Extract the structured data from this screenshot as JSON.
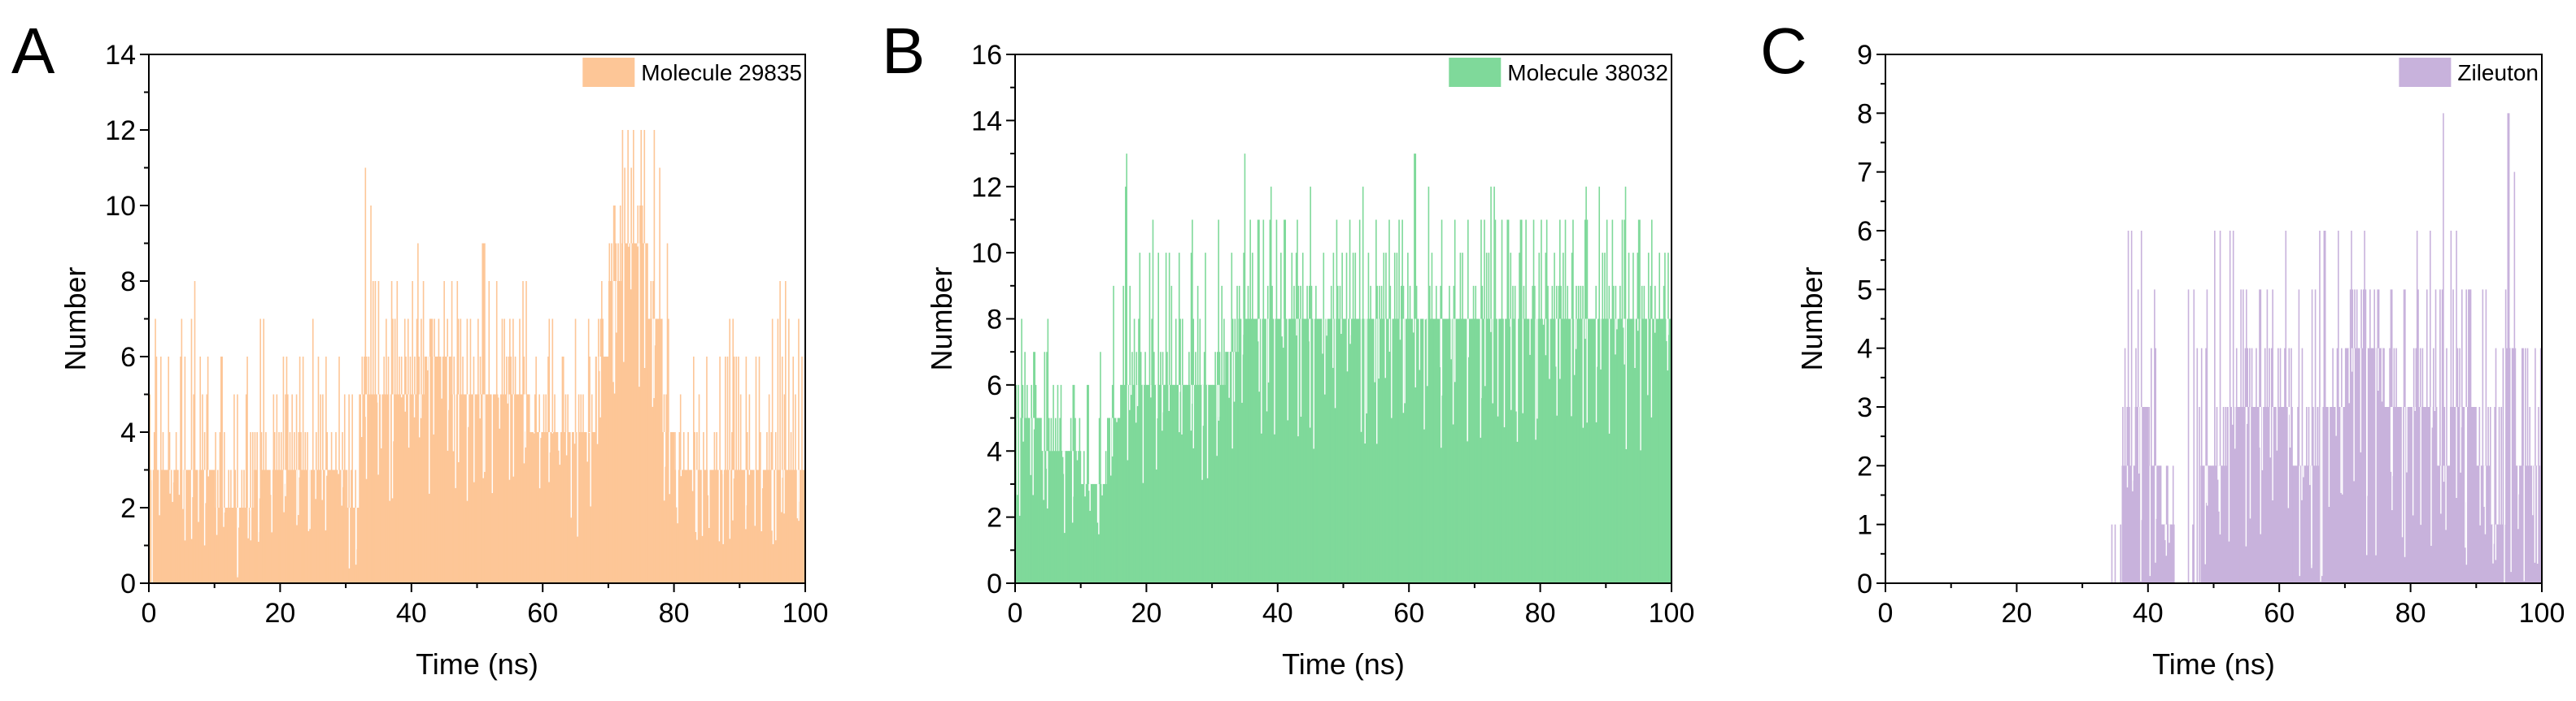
{
  "chart_data": [
    {
      "type": "bar",
      "panel_label": "A",
      "legend": "Molecule 29835",
      "color": "#FDC697",
      "xlabel": "Time (ns)",
      "ylabel": "Number",
      "xlim": [
        0,
        100
      ],
      "ylim": [
        0,
        14
      ],
      "xticks": [
        0,
        20,
        40,
        60,
        80,
        100
      ],
      "yticks": [
        0,
        2,
        4,
        6,
        8,
        10,
        12,
        14
      ],
      "legend_position": "top-right",
      "grid": false,
      "x": [
        0,
        2,
        4,
        6,
        8,
        10,
        12,
        14,
        16,
        18,
        20,
        22,
        24,
        26,
        28,
        30,
        32,
        34,
        36,
        38,
        40,
        42,
        44,
        46,
        48,
        50,
        52,
        54,
        56,
        58,
        60,
        62,
        64,
        66,
        68,
        70,
        72,
        74,
        76,
        78,
        80,
        82,
        84,
        86,
        88,
        90,
        92,
        94,
        96,
        98
      ],
      "values": [
        3,
        3,
        3,
        3,
        3,
        2,
        2,
        2,
        3,
        3,
        3,
        3,
        3,
        3,
        3,
        2,
        5,
        5,
        5,
        5,
        5,
        6,
        6,
        5,
        5,
        5,
        5,
        5,
        5,
        4,
        4,
        4,
        4,
        4,
        6,
        8,
        9,
        9,
        7,
        4,
        3,
        3,
        3,
        3,
        3,
        3,
        3,
        3,
        3,
        3
      ],
      "peaks": [
        7,
        6,
        7,
        8,
        6,
        6,
        5,
        6,
        7,
        5,
        6,
        6,
        7,
        6,
        6,
        5,
        11,
        8,
        8,
        7,
        9,
        7,
        8,
        8,
        7,
        9,
        8,
        7,
        8,
        6,
        7,
        6,
        7,
        7,
        8,
        10,
        12,
        12,
        12,
        9,
        5,
        6,
        6,
        6,
        7,
        6,
        6,
        7,
        8,
        7
      ],
      "mins": [
        0,
        1,
        1,
        1,
        1,
        1,
        0,
        1,
        1,
        1,
        1,
        1,
        1,
        1,
        1,
        0,
        2,
        2,
        2,
        2,
        2,
        2,
        3,
        2,
        2,
        2,
        2,
        2,
        2,
        2,
        2,
        2,
        1,
        2,
        3,
        4,
        5,
        5,
        4,
        2,
        1,
        1,
        1,
        1,
        1,
        1,
        1,
        1,
        1,
        0
      ]
    },
    {
      "type": "bar",
      "panel_label": "B",
      "legend": "Molecule 38032",
      "color": "#7FD99A",
      "xlabel": "Time (ns)",
      "ylabel": "Number",
      "xlim": [
        0,
        100
      ],
      "ylim": [
        0,
        16
      ],
      "xticks": [
        0,
        20,
        40,
        60,
        80,
        100
      ],
      "yticks": [
        0,
        2,
        4,
        6,
        8,
        10,
        12,
        14,
        16
      ],
      "legend_position": "top-right",
      "grid": false,
      "x": [
        0,
        2,
        4,
        6,
        8,
        10,
        12,
        14,
        16,
        18,
        20,
        22,
        24,
        26,
        28,
        30,
        32,
        34,
        36,
        38,
        40,
        42,
        44,
        46,
        48,
        50,
        52,
        54,
        56,
        58,
        60,
        62,
        64,
        66,
        68,
        70,
        72,
        74,
        76,
        78,
        80,
        82,
        84,
        86,
        88,
        90,
        92,
        94,
        96,
        98
      ],
      "values": [
        5,
        5,
        4,
        4,
        4,
        3,
        3,
        5,
        6,
        6,
        6,
        6,
        6,
        6,
        6,
        6,
        7,
        8,
        8,
        8,
        8,
        8,
        8,
        8,
        8,
        8,
        8,
        8,
        8,
        8,
        8,
        8,
        8,
        8,
        8,
        8,
        8,
        8,
        8,
        8,
        8,
        8,
        8,
        8,
        8,
        8,
        8,
        8,
        8,
        8
      ],
      "peaks": [
        8,
        7,
        8,
        6,
        6,
        6,
        7,
        9,
        13,
        10,
        11,
        10,
        10,
        11,
        10,
        11,
        10,
        13,
        11,
        12,
        11,
        11,
        12,
        10,
        11,
        11,
        12,
        11,
        11,
        11,
        13,
        12,
        11,
        11,
        11,
        11,
        12,
        11,
        11,
        11,
        11,
        11,
        11,
        12,
        12,
        11,
        12,
        11,
        11,
        10
      ],
      "mins": [
        2,
        2,
        2,
        1,
        1,
        1,
        1,
        2,
        3,
        3,
        3,
        3,
        3,
        3,
        3,
        3,
        4,
        4,
        4,
        4,
        4,
        4,
        4,
        4,
        4,
        4,
        4,
        4,
        4,
        4,
        4,
        4,
        4,
        4,
        4,
        4,
        4,
        4,
        4,
        4,
        4,
        4,
        4,
        4,
        4,
        4,
        4,
        4,
        4,
        4
      ]
    },
    {
      "type": "bar",
      "panel_label": "C",
      "legend": "Zileuton",
      "color": "#C8B2DC",
      "xlabel": "Time (ns)",
      "ylabel": "Number",
      "xlim": [
        0,
        100
      ],
      "ylim": [
        0,
        9
      ],
      "xticks": [
        0,
        20,
        40,
        60,
        80,
        100
      ],
      "yticks": [
        0,
        1,
        2,
        3,
        4,
        5,
        6,
        7,
        8,
        9
      ],
      "legend_position": "top-right",
      "grid": false,
      "x": [
        0,
        2,
        4,
        6,
        8,
        10,
        12,
        14,
        16,
        18,
        20,
        22,
        24,
        26,
        28,
        30,
        32,
        34,
        36,
        38,
        40,
        42,
        44,
        46,
        48,
        50,
        52,
        54,
        56,
        58,
        60,
        62,
        64,
        66,
        68,
        70,
        72,
        74,
        76,
        78,
        80,
        82,
        84,
        86,
        88,
        90,
        92,
        94,
        96,
        98
      ],
      "values": [
        0,
        0,
        0,
        0,
        0,
        0,
        0,
        0,
        0,
        0,
        0,
        0,
        0,
        0,
        0,
        0,
        0,
        0,
        2,
        3,
        2,
        1,
        0,
        0,
        2,
        2,
        3,
        3,
        3,
        3,
        3,
        2,
        2,
        3,
        3,
        4,
        4,
        4,
        3,
        3,
        3,
        3,
        2,
        3,
        3,
        2,
        1,
        4,
        2,
        2
      ],
      "peaks": [
        0,
        0,
        0,
        0,
        0,
        0,
        0,
        0,
        0,
        0,
        0,
        0,
        0,
        0,
        0,
        0,
        0,
        1,
        6,
        6,
        5,
        2,
        0,
        5,
        5,
        6,
        6,
        5,
        5,
        5,
        6,
        5,
        5,
        6,
        6,
        6,
        6,
        5,
        5,
        5,
        6,
        6,
        8,
        6,
        5,
        5,
        4,
        8,
        4,
        4
      ],
      "mins": [
        0,
        0,
        0,
        0,
        0,
        0,
        0,
        0,
        0,
        0,
        0,
        0,
        0,
        0,
        0,
        0,
        0,
        0,
        0,
        0,
        0,
        0,
        0,
        0,
        0,
        0,
        0,
        0,
        0,
        0,
        0,
        0,
        0,
        0,
        0,
        0,
        0,
        0,
        0,
        0,
        0,
        0,
        0,
        0,
        0,
        0,
        0,
        0,
        0,
        0
      ]
    }
  ]
}
